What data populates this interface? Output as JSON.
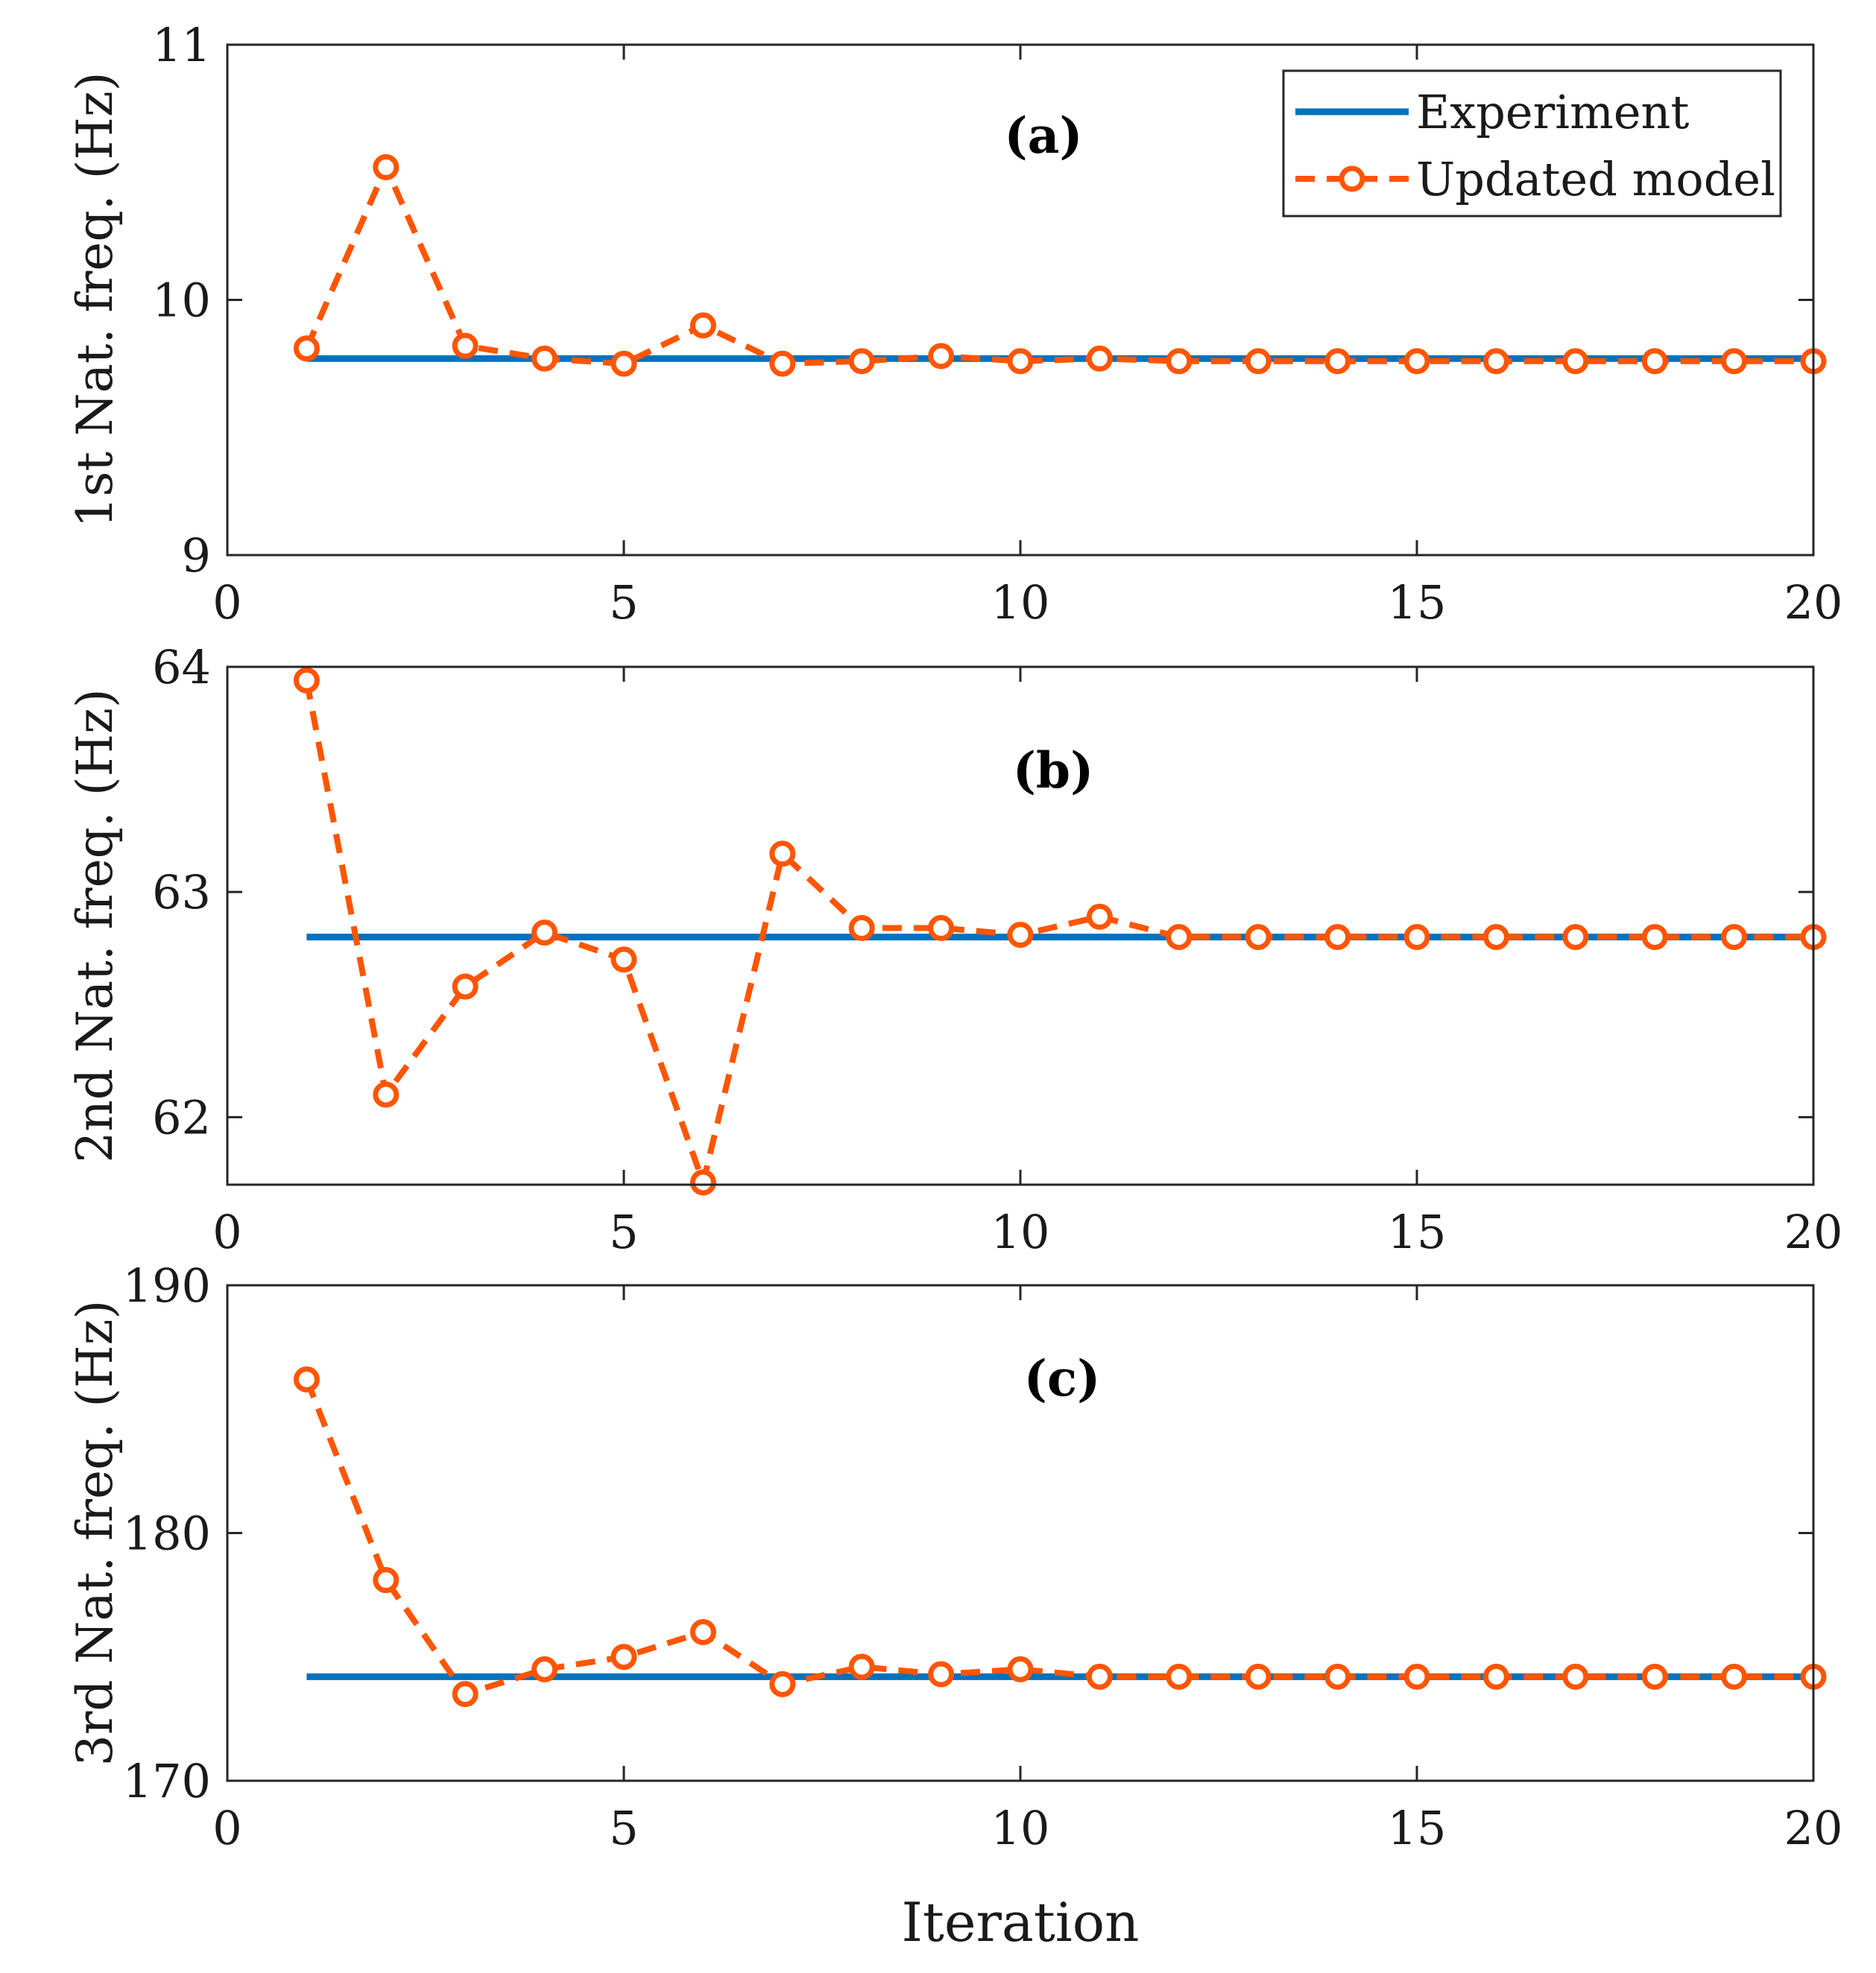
{
  "chart_data": [
    {
      "type": "line",
      "annotation": "(a)",
      "ylabel": "1st Nat. freq. (Hz)",
      "xlabel": "",
      "xlim": [
        0,
        20
      ],
      "ylim": [
        9,
        11
      ],
      "xticks": [
        0,
        5,
        10,
        15,
        20
      ],
      "yticks": [
        9,
        10,
        11
      ],
      "legend": {
        "position": "top-right",
        "entries": [
          "Experiment",
          "Updated model"
        ]
      },
      "series": [
        {
          "name": "Experiment",
          "style": "solid",
          "color": "#0072BD",
          "x": [
            1,
            20
          ],
          "y": [
            9.77,
            9.77
          ]
        },
        {
          "name": "Updated model",
          "style": "dashed-circle",
          "color": "#FF5500",
          "x": [
            1,
            2,
            3,
            4,
            5,
            6,
            7,
            8,
            9,
            10,
            11,
            12,
            13,
            14,
            15,
            16,
            17,
            18,
            19,
            20
          ],
          "y": [
            9.81,
            10.52,
            9.82,
            9.77,
            9.75,
            9.9,
            9.75,
            9.76,
            9.78,
            9.76,
            9.77,
            9.76,
            9.76,
            9.76,
            9.76,
            9.76,
            9.76,
            9.76,
            9.76,
            9.76
          ]
        }
      ]
    },
    {
      "type": "line",
      "annotation": "(b)",
      "ylabel": "2nd Nat. freq. (Hz)",
      "xlabel": "",
      "xlim": [
        0,
        20
      ],
      "ylim": [
        61.7,
        64
      ],
      "xticks": [
        0,
        5,
        10,
        15,
        20
      ],
      "yticks": [
        62,
        63,
        64
      ],
      "series": [
        {
          "name": "Experiment",
          "style": "solid",
          "color": "#0072BD",
          "x": [
            1,
            20
          ],
          "y": [
            62.8,
            62.8
          ]
        },
        {
          "name": "Updated model",
          "style": "dashed-circle",
          "color": "#FF5500",
          "x": [
            1,
            2,
            3,
            4,
            5,
            6,
            7,
            8,
            9,
            10,
            11,
            12,
            13,
            14,
            15,
            16,
            17,
            18,
            19,
            20
          ],
          "y": [
            63.94,
            62.1,
            62.58,
            62.82,
            62.7,
            61.71,
            63.17,
            62.84,
            62.84,
            62.81,
            62.89,
            62.8,
            62.8,
            62.8,
            62.8,
            62.8,
            62.8,
            62.8,
            62.8,
            62.8
          ]
        }
      ]
    },
    {
      "type": "line",
      "annotation": "(c)",
      "ylabel": "3rd Nat. freq. (Hz)",
      "xlabel": "Iteration",
      "xlim": [
        0,
        20
      ],
      "ylim": [
        170,
        190
      ],
      "xticks": [
        0,
        5,
        10,
        15,
        20
      ],
      "yticks": [
        170,
        180,
        190
      ],
      "series": [
        {
          "name": "Experiment",
          "style": "solid",
          "color": "#0072BD",
          "x": [
            1,
            20
          ],
          "y": [
            174.2,
            174.2
          ]
        },
        {
          "name": "Updated model",
          "style": "dashed-circle",
          "color": "#FF5500",
          "x": [
            1,
            2,
            3,
            4,
            5,
            6,
            7,
            8,
            9,
            10,
            11,
            12,
            13,
            14,
            15,
            16,
            17,
            18,
            19,
            20
          ],
          "y": [
            186.2,
            178.1,
            173.5,
            174.5,
            175.0,
            176.0,
            173.9,
            174.6,
            174.3,
            174.5,
            174.2,
            174.2,
            174.2,
            174.2,
            174.2,
            174.2,
            174.2,
            174.2,
            174.2,
            174.2
          ]
        }
      ]
    }
  ]
}
